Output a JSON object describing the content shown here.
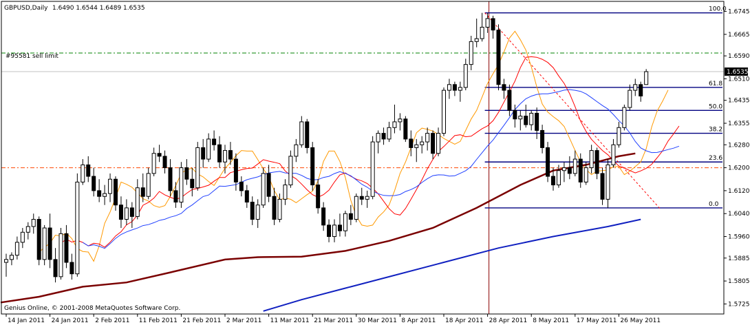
{
  "header": {
    "symbol": "GBPUSD,Daily",
    "ohlc": "1.6490 1.6544 1.6489 1.6535"
  },
  "order_label": "#95581 sell limit",
  "copyright": "Genius Online, © 2001-2008 MetaQuotes Software Corp.",
  "current_price": "1.6535",
  "chart_data": {
    "type": "candlestick",
    "title": "GBPUSD,Daily",
    "ylim": [
      1.569,
      1.678
    ],
    "y_ticks": [
      "1.6745",
      "1.6665",
      "1.6590",
      "1.6510",
      "1.6435",
      "1.6355",
      "1.6280",
      "1.6200",
      "1.6120",
      "1.6040",
      "1.5960",
      "1.5885",
      "1.5805",
      "1.5725"
    ],
    "x_ticks": [
      "14 Jan 2011",
      "24 Jan 2011",
      "2 Feb 2011",
      "11 Feb 2011",
      "21 Feb 2011",
      "2 Mar 2011",
      "11 Mar 2011",
      "21 Mar 2011",
      "30 Mar 2011",
      "8 Apr 2011",
      "18 Apr 2011",
      "28 Apr 2011",
      "8 May 2011",
      "17 May 2011",
      "26 May 2011"
    ],
    "x_tick_index": [
      0,
      8,
      16,
      24,
      32,
      40,
      48,
      56,
      64,
      72,
      80,
      88,
      96,
      104,
      112
    ],
    "last_bar": {
      "open": 1.649,
      "high": 1.6544,
      "low": 1.6489,
      "close": 1.6535
    },
    "fibonacci": {
      "high": 1.674,
      "low": 1.606,
      "levels": [
        {
          "label": "100.0",
          "price": 1.674
        },
        {
          "label": "61.8",
          "price": 1.648
        },
        {
          "label": "50.0",
          "price": 1.64
        },
        {
          "label": "38.2",
          "price": 1.632
        },
        {
          "label": "23.6",
          "price": 1.622
        },
        {
          "label": "0.0",
          "price": 1.606
        }
      ]
    },
    "horizontal_lines": [
      {
        "name": "sell-limit",
        "price": 1.66,
        "color": "#008000"
      },
      {
        "name": "support",
        "price": 1.62,
        "color": "#ff4500"
      }
    ],
    "vertical_line_index": 88,
    "candles": [
      {
        "o": 1.587,
        "h": 1.59,
        "l": 1.582,
        "c": 1.588
      },
      {
        "o": 1.588,
        "h": 1.5905,
        "l": 1.586,
        "c": 1.5895
      },
      {
        "o": 1.5895,
        "h": 1.596,
        "l": 1.588,
        "c": 1.594
      },
      {
        "o": 1.594,
        "h": 1.599,
        "l": 1.592,
        "c": 1.5975
      },
      {
        "o": 1.5975,
        "h": 1.601,
        "l": 1.595,
        "c": 1.5995
      },
      {
        "o": 1.5995,
        "h": 1.604,
        "l": 1.597,
        "c": 1.602
      },
      {
        "o": 1.602,
        "h": 1.603,
        "l": 1.586,
        "c": 1.588
      },
      {
        "o": 1.588,
        "h": 1.6,
        "l": 1.586,
        "c": 1.599
      },
      {
        "o": 1.599,
        "h": 1.604,
        "l": 1.585,
        "c": 1.588
      },
      {
        "o": 1.588,
        "h": 1.592,
        "l": 1.58,
        "c": 1.582
      },
      {
        "o": 1.582,
        "h": 1.599,
        "l": 1.581,
        "c": 1.597
      },
      {
        "o": 1.597,
        "h": 1.6,
        "l": 1.585,
        "c": 1.587
      },
      {
        "o": 1.587,
        "h": 1.59,
        "l": 1.581,
        "c": 1.583
      },
      {
        "o": 1.583,
        "h": 1.618,
        "l": 1.582,
        "c": 1.615
      },
      {
        "o": 1.615,
        "h": 1.623,
        "l": 1.614,
        "c": 1.621
      },
      {
        "o": 1.621,
        "h": 1.624,
        "l": 1.615,
        "c": 1.617
      },
      {
        "o": 1.617,
        "h": 1.62,
        "l": 1.61,
        "c": 1.612
      },
      {
        "o": 1.612,
        "h": 1.616,
        "l": 1.608,
        "c": 1.61
      },
      {
        "o": 1.61,
        "h": 1.614,
        "l": 1.607,
        "c": 1.611
      },
      {
        "o": 1.611,
        "h": 1.618,
        "l": 1.608,
        "c": 1.616
      },
      {
        "o": 1.616,
        "h": 1.617,
        "l": 1.605,
        "c": 1.607
      },
      {
        "o": 1.607,
        "h": 1.61,
        "l": 1.599,
        "c": 1.602
      },
      {
        "o": 1.602,
        "h": 1.609,
        "l": 1.6,
        "c": 1.606
      },
      {
        "o": 1.606,
        "h": 1.608,
        "l": 1.599,
        "c": 1.603
      },
      {
        "o": 1.603,
        "h": 1.616,
        "l": 1.602,
        "c": 1.613
      },
      {
        "o": 1.613,
        "h": 1.618,
        "l": 1.608,
        "c": 1.61
      },
      {
        "o": 1.61,
        "h": 1.62,
        "l": 1.609,
        "c": 1.618
      },
      {
        "o": 1.618,
        "h": 1.627,
        "l": 1.617,
        "c": 1.625
      },
      {
        "o": 1.625,
        "h": 1.628,
        "l": 1.622,
        "c": 1.624
      },
      {
        "o": 1.624,
        "h": 1.626,
        "l": 1.618,
        "c": 1.62
      },
      {
        "o": 1.62,
        "h": 1.623,
        "l": 1.61,
        "c": 1.612
      },
      {
        "o": 1.612,
        "h": 1.615,
        "l": 1.606,
        "c": 1.608
      },
      {
        "o": 1.608,
        "h": 1.622,
        "l": 1.606,
        "c": 1.62
      },
      {
        "o": 1.62,
        "h": 1.623,
        "l": 1.614,
        "c": 1.616
      },
      {
        "o": 1.616,
        "h": 1.62,
        "l": 1.61,
        "c": 1.613
      },
      {
        "o": 1.613,
        "h": 1.629,
        "l": 1.612,
        "c": 1.627
      },
      {
        "o": 1.627,
        "h": 1.63,
        "l": 1.62,
        "c": 1.623
      },
      {
        "o": 1.623,
        "h": 1.632,
        "l": 1.622,
        "c": 1.63
      },
      {
        "o": 1.63,
        "h": 1.633,
        "l": 1.626,
        "c": 1.628
      },
      {
        "o": 1.628,
        "h": 1.631,
        "l": 1.62,
        "c": 1.622
      },
      {
        "o": 1.622,
        "h": 1.628,
        "l": 1.618,
        "c": 1.626
      },
      {
        "o": 1.626,
        "h": 1.629,
        "l": 1.621,
        "c": 1.623
      },
      {
        "o": 1.623,
        "h": 1.625,
        "l": 1.612,
        "c": 1.615
      },
      {
        "o": 1.615,
        "h": 1.617,
        "l": 1.61,
        "c": 1.612
      },
      {
        "o": 1.612,
        "h": 1.614,
        "l": 1.606,
        "c": 1.608
      },
      {
        "o": 1.608,
        "h": 1.61,
        "l": 1.6,
        "c": 1.602
      },
      {
        "o": 1.602,
        "h": 1.609,
        "l": 1.599,
        "c": 1.607
      },
      {
        "o": 1.607,
        "h": 1.62,
        "l": 1.606,
        "c": 1.618
      },
      {
        "o": 1.618,
        "h": 1.621,
        "l": 1.608,
        "c": 1.61
      },
      {
        "o": 1.61,
        "h": 1.613,
        "l": 1.6,
        "c": 1.602
      },
      {
        "o": 1.602,
        "h": 1.611,
        "l": 1.601,
        "c": 1.609
      },
      {
        "o": 1.609,
        "h": 1.616,
        "l": 1.607,
        "c": 1.614
      },
      {
        "o": 1.614,
        "h": 1.626,
        "l": 1.613,
        "c": 1.624
      },
      {
        "o": 1.624,
        "h": 1.63,
        "l": 1.622,
        "c": 1.628
      },
      {
        "o": 1.628,
        "h": 1.638,
        "l": 1.627,
        "c": 1.636
      },
      {
        "o": 1.636,
        "h": 1.637,
        "l": 1.625,
        "c": 1.627
      },
      {
        "o": 1.627,
        "h": 1.629,
        "l": 1.612,
        "c": 1.614
      },
      {
        "o": 1.614,
        "h": 1.616,
        "l": 1.604,
        "c": 1.606
      },
      {
        "o": 1.606,
        "h": 1.608,
        "l": 1.598,
        "c": 1.6
      },
      {
        "o": 1.6,
        "h": 1.602,
        "l": 1.594,
        "c": 1.596
      },
      {
        "o": 1.596,
        "h": 1.602,
        "l": 1.594,
        "c": 1.6
      },
      {
        "o": 1.6,
        "h": 1.604,
        "l": 1.596,
        "c": 1.598
      },
      {
        "o": 1.598,
        "h": 1.605,
        "l": 1.596,
        "c": 1.604
      },
      {
        "o": 1.604,
        "h": 1.607,
        "l": 1.6,
        "c": 1.602
      },
      {
        "o": 1.602,
        "h": 1.611,
        "l": 1.601,
        "c": 1.61
      },
      {
        "o": 1.61,
        "h": 1.613,
        "l": 1.607,
        "c": 1.609
      },
      {
        "o": 1.609,
        "h": 1.612,
        "l": 1.606,
        "c": 1.61
      },
      {
        "o": 1.61,
        "h": 1.631,
        "l": 1.609,
        "c": 1.629
      },
      {
        "o": 1.629,
        "h": 1.633,
        "l": 1.625,
        "c": 1.632
      },
      {
        "o": 1.632,
        "h": 1.634,
        "l": 1.628,
        "c": 1.63
      },
      {
        "o": 1.63,
        "h": 1.636,
        "l": 1.629,
        "c": 1.634
      },
      {
        "o": 1.634,
        "h": 1.642,
        "l": 1.632,
        "c": 1.636
      },
      {
        "o": 1.636,
        "h": 1.639,
        "l": 1.633,
        "c": 1.637
      },
      {
        "o": 1.637,
        "h": 1.638,
        "l": 1.629,
        "c": 1.63
      },
      {
        "o": 1.63,
        "h": 1.633,
        "l": 1.624,
        "c": 1.627
      },
      {
        "o": 1.627,
        "h": 1.63,
        "l": 1.622,
        "c": 1.628
      },
      {
        "o": 1.628,
        "h": 1.631,
        "l": 1.625,
        "c": 1.629
      },
      {
        "o": 1.629,
        "h": 1.634,
        "l": 1.626,
        "c": 1.632
      },
      {
        "o": 1.632,
        "h": 1.633,
        "l": 1.623,
        "c": 1.625
      },
      {
        "o": 1.625,
        "h": 1.634,
        "l": 1.624,
        "c": 1.632
      },
      {
        "o": 1.632,
        "h": 1.648,
        "l": 1.631,
        "c": 1.647
      },
      {
        "o": 1.647,
        "h": 1.651,
        "l": 1.644,
        "c": 1.649
      },
      {
        "o": 1.649,
        "h": 1.65,
        "l": 1.645,
        "c": 1.647
      },
      {
        "o": 1.647,
        "h": 1.65,
        "l": 1.643,
        "c": 1.648
      },
      {
        "o": 1.648,
        "h": 1.658,
        "l": 1.647,
        "c": 1.656
      },
      {
        "o": 1.656,
        "h": 1.666,
        "l": 1.654,
        "c": 1.664
      },
      {
        "o": 1.664,
        "h": 1.672,
        "l": 1.662,
        "c": 1.665
      },
      {
        "o": 1.665,
        "h": 1.674,
        "l": 1.664,
        "c": 1.669
      },
      {
        "o": 1.669,
        "h": 1.674,
        "l": 1.667,
        "c": 1.672
      },
      {
        "o": 1.672,
        "h": 1.673,
        "l": 1.665,
        "c": 1.668
      },
      {
        "o": 1.668,
        "h": 1.67,
        "l": 1.647,
        "c": 1.649
      },
      {
        "o": 1.649,
        "h": 1.651,
        "l": 1.644,
        "c": 1.647
      },
      {
        "o": 1.647,
        "h": 1.649,
        "l": 1.638,
        "c": 1.64
      },
      {
        "o": 1.64,
        "h": 1.642,
        "l": 1.634,
        "c": 1.637
      },
      {
        "o": 1.637,
        "h": 1.64,
        "l": 1.633,
        "c": 1.638
      },
      {
        "o": 1.638,
        "h": 1.642,
        "l": 1.634,
        "c": 1.635
      },
      {
        "o": 1.635,
        "h": 1.64,
        "l": 1.633,
        "c": 1.639
      },
      {
        "o": 1.639,
        "h": 1.641,
        "l": 1.63,
        "c": 1.633
      },
      {
        "o": 1.633,
        "h": 1.635,
        "l": 1.625,
        "c": 1.627
      },
      {
        "o": 1.627,
        "h": 1.629,
        "l": 1.615,
        "c": 1.617
      },
      {
        "o": 1.617,
        "h": 1.62,
        "l": 1.612,
        "c": 1.614
      },
      {
        "o": 1.614,
        "h": 1.621,
        "l": 1.613,
        "c": 1.619
      },
      {
        "o": 1.619,
        "h": 1.622,
        "l": 1.615,
        "c": 1.62
      },
      {
        "o": 1.62,
        "h": 1.624,
        "l": 1.616,
        "c": 1.618
      },
      {
        "o": 1.618,
        "h": 1.626,
        "l": 1.617,
        "c": 1.623
      },
      {
        "o": 1.623,
        "h": 1.625,
        "l": 1.613,
        "c": 1.615
      },
      {
        "o": 1.615,
        "h": 1.622,
        "l": 1.614,
        "c": 1.62
      },
      {
        "o": 1.62,
        "h": 1.628,
        "l": 1.618,
        "c": 1.626
      },
      {
        "o": 1.626,
        "h": 1.627,
        "l": 1.616,
        "c": 1.618
      },
      {
        "o": 1.618,
        "h": 1.62,
        "l": 1.607,
        "c": 1.609
      },
      {
        "o": 1.609,
        "h": 1.623,
        "l": 1.606,
        "c": 1.621
      },
      {
        "o": 1.621,
        "h": 1.63,
        "l": 1.62,
        "c": 1.628
      },
      {
        "o": 1.628,
        "h": 1.636,
        "l": 1.627,
        "c": 1.634
      },
      {
        "o": 1.634,
        "h": 1.642,
        "l": 1.633,
        "c": 1.641
      },
      {
        "o": 1.641,
        "h": 1.649,
        "l": 1.64,
        "c": 1.647
      },
      {
        "o": 1.647,
        "h": 1.651,
        "l": 1.645,
        "c": 1.649
      },
      {
        "o": 1.649,
        "h": 1.65,
        "l": 1.643,
        "c": 1.645
      },
      {
        "o": 1.649,
        "h": 1.6544,
        "l": 1.6489,
        "c": 1.6535
      }
    ]
  },
  "colors": {
    "axis": "#000000",
    "bull": "#ffffff",
    "bear": "#000000",
    "ma_orange": "#ff9900",
    "ma_red": "#ff0000",
    "ma_blue": "#2040ff",
    "ma_dark_red": "#7a0000",
    "ma_dark_blue": "#1020c0",
    "fib": "#000080",
    "sell_limit": "#008000",
    "support": "#ff4500",
    "vline": "#8b0000"
  }
}
